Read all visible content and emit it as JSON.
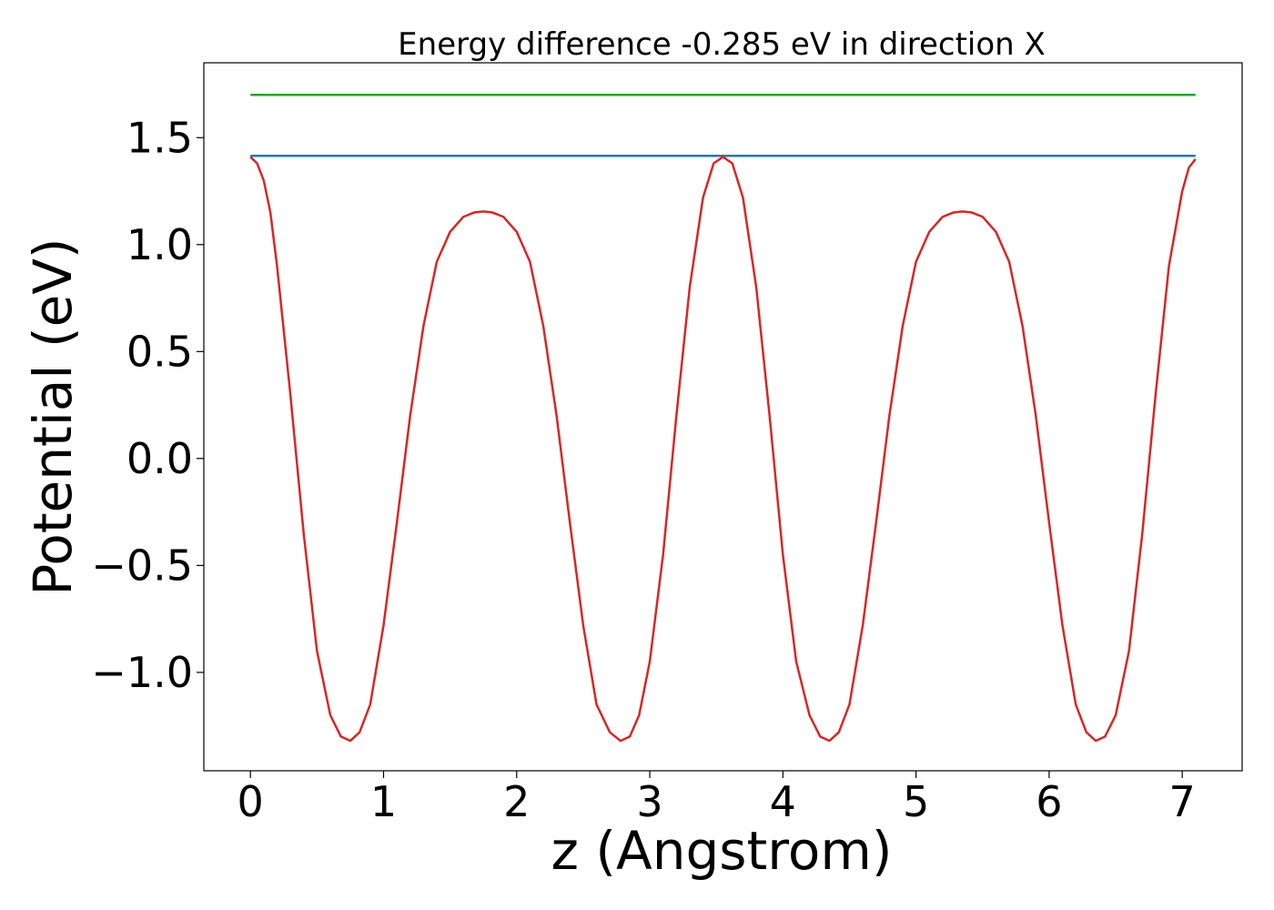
{
  "chart_data": {
    "type": "line",
    "title": "Energy difference -0.285 eV in direction X",
    "xlabel": "z (Angstrom)",
    "ylabel": "Potential (eV)",
    "xlim": [
      -0.35,
      7.45
    ],
    "ylim": [
      -1.46,
      1.85
    ],
    "xticks": [
      0,
      1,
      2,
      3,
      4,
      5,
      6,
      7
    ],
    "xtick_labels": [
      "0",
      "1",
      "2",
      "3",
      "4",
      "5",
      "6",
      "7"
    ],
    "yticks": [
      -1.0,
      -0.5,
      0.0,
      0.5,
      1.0,
      1.5
    ],
    "ytick_labels": [
      "−1.0",
      "−0.5",
      "0.0",
      "0.5",
      "1.0",
      "1.5"
    ],
    "grid": false,
    "legend": "none",
    "series": [
      {
        "color": "#2ca02c",
        "x": [
          0,
          7.1
        ],
        "y": [
          1.7,
          1.7
        ]
      },
      {
        "color": "#1f77b4",
        "x": [
          0,
          7.1
        ],
        "y": [
          1.415,
          1.415
        ]
      },
      {
        "color": "#d62728",
        "x": [
          0.0,
          0.05,
          0.1,
          0.15,
          0.2,
          0.3,
          0.4,
          0.5,
          0.6,
          0.68,
          0.75,
          0.82,
          0.9,
          1.0,
          1.1,
          1.2,
          1.3,
          1.4,
          1.5,
          1.6,
          1.68,
          1.75,
          1.82,
          1.9,
          2.0,
          2.1,
          2.2,
          2.3,
          2.4,
          2.5,
          2.6,
          2.7,
          2.78,
          2.85,
          2.92,
          3.0,
          3.1,
          3.2,
          3.3,
          3.4,
          3.48,
          3.55,
          3.62,
          3.7,
          3.8,
          3.9,
          4.0,
          4.1,
          4.2,
          4.28,
          4.35,
          4.42,
          4.5,
          4.6,
          4.7,
          4.8,
          4.9,
          5.0,
          5.1,
          5.2,
          5.28,
          5.35,
          5.42,
          5.5,
          5.6,
          5.7,
          5.8,
          5.9,
          6.0,
          6.1,
          6.2,
          6.28,
          6.35,
          6.42,
          6.5,
          6.6,
          6.7,
          6.8,
          6.9,
          7.0,
          7.05,
          7.1
        ],
        "y": [
          1.41,
          1.38,
          1.3,
          1.15,
          0.9,
          0.3,
          -0.35,
          -0.9,
          -1.2,
          -1.3,
          -1.32,
          -1.28,
          -1.15,
          -0.78,
          -0.3,
          0.2,
          0.62,
          0.92,
          1.06,
          1.13,
          1.15,
          1.155,
          1.15,
          1.13,
          1.06,
          0.92,
          0.62,
          0.2,
          -0.3,
          -0.78,
          -1.15,
          -1.28,
          -1.32,
          -1.3,
          -1.2,
          -0.95,
          -0.45,
          0.2,
          0.8,
          1.22,
          1.38,
          1.41,
          1.38,
          1.22,
          0.8,
          0.2,
          -0.45,
          -0.95,
          -1.2,
          -1.3,
          -1.32,
          -1.28,
          -1.15,
          -0.78,
          -0.3,
          0.2,
          0.62,
          0.92,
          1.06,
          1.13,
          1.15,
          1.155,
          1.15,
          1.13,
          1.06,
          0.92,
          0.62,
          0.2,
          -0.3,
          -0.78,
          -1.15,
          -1.28,
          -1.32,
          -1.3,
          -1.2,
          -0.9,
          -0.35,
          0.3,
          0.9,
          1.25,
          1.36,
          1.4
        ]
      }
    ]
  }
}
